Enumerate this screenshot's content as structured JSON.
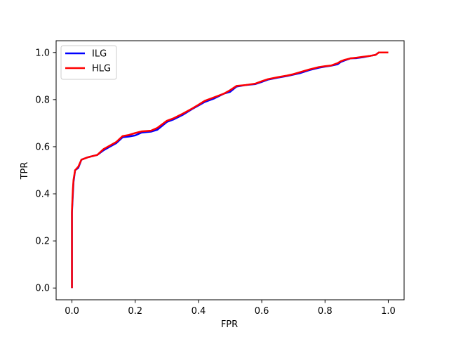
{
  "chart_data": {
    "type": "line",
    "title": "",
    "xlabel": "FPR",
    "ylabel": "TPR",
    "xlim": [
      -0.05,
      1.05
    ],
    "ylim": [
      -0.05,
      1.05
    ],
    "xticks": [
      0.0,
      0.2,
      0.4,
      0.6,
      0.8,
      1.0
    ],
    "yticks": [
      0.0,
      0.2,
      0.4,
      0.6,
      0.8,
      1.0
    ],
    "xtick_labels": [
      "0.0",
      "0.2",
      "0.4",
      "0.6",
      "0.8",
      "1.0"
    ],
    "ytick_labels": [
      "0.0",
      "0.2",
      "0.4",
      "0.6",
      "0.8",
      "1.0"
    ],
    "grid": false,
    "legend_position": "top-left",
    "series": [
      {
        "name": "ILG",
        "color": "#0000ff",
        "x": [
          0.0,
          0.0,
          0.003,
          0.005,
          0.01,
          0.02,
          0.03,
          0.05,
          0.08,
          0.1,
          0.12,
          0.14,
          0.16,
          0.18,
          0.2,
          0.22,
          0.25,
          0.27,
          0.3,
          0.32,
          0.35,
          0.38,
          0.4,
          0.42,
          0.45,
          0.48,
          0.5,
          0.52,
          0.55,
          0.58,
          0.6,
          0.62,
          0.65,
          0.68,
          0.7,
          0.72,
          0.75,
          0.78,
          0.8,
          0.82,
          0.84,
          0.85,
          0.86,
          0.88,
          0.9,
          0.92,
          0.94,
          0.96,
          0.97,
          1.0
        ],
        "y": [
          0.0,
          0.32,
          0.4,
          0.45,
          0.5,
          0.51,
          0.545,
          0.555,
          0.565,
          0.585,
          0.6,
          0.615,
          0.64,
          0.643,
          0.648,
          0.66,
          0.664,
          0.672,
          0.705,
          0.715,
          0.735,
          0.76,
          0.775,
          0.79,
          0.805,
          0.825,
          0.833,
          0.855,
          0.862,
          0.866,
          0.875,
          0.885,
          0.893,
          0.9,
          0.906,
          0.912,
          0.925,
          0.935,
          0.94,
          0.944,
          0.95,
          0.96,
          0.965,
          0.975,
          0.976,
          0.98,
          0.985,
          0.99,
          1.0,
          1.0
        ]
      },
      {
        "name": "HLG",
        "color": "#ff0000",
        "x": [
          0.0,
          0.0,
          0.003,
          0.005,
          0.01,
          0.02,
          0.03,
          0.05,
          0.08,
          0.1,
          0.12,
          0.14,
          0.16,
          0.18,
          0.2,
          0.22,
          0.25,
          0.27,
          0.3,
          0.32,
          0.35,
          0.38,
          0.4,
          0.42,
          0.45,
          0.48,
          0.5,
          0.52,
          0.55,
          0.58,
          0.6,
          0.62,
          0.65,
          0.68,
          0.7,
          0.72,
          0.75,
          0.78,
          0.8,
          0.82,
          0.84,
          0.85,
          0.86,
          0.88,
          0.9,
          0.92,
          0.94,
          0.96,
          0.97,
          1.0
        ],
        "y": [
          0.0,
          0.33,
          0.42,
          0.46,
          0.5,
          0.515,
          0.545,
          0.555,
          0.565,
          0.59,
          0.605,
          0.62,
          0.645,
          0.65,
          0.658,
          0.665,
          0.668,
          0.68,
          0.71,
          0.72,
          0.74,
          0.762,
          0.778,
          0.795,
          0.81,
          0.825,
          0.84,
          0.858,
          0.862,
          0.868,
          0.878,
          0.887,
          0.895,
          0.902,
          0.908,
          0.916,
          0.928,
          0.938,
          0.942,
          0.945,
          0.955,
          0.963,
          0.968,
          0.975,
          0.978,
          0.982,
          0.985,
          0.99,
          1.0,
          1.0
        ]
      }
    ]
  }
}
